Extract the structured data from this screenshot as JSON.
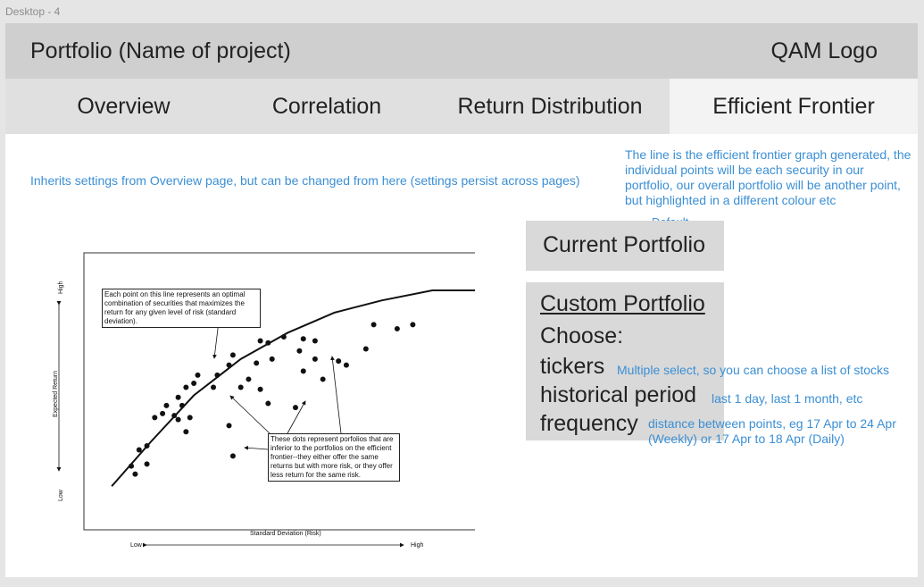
{
  "frame_label": "Desktop - 4",
  "header": {
    "title": "Portfolio (Name of project)",
    "logo": "QAM Logo"
  },
  "tabs": [
    {
      "label": "Overview",
      "active": false
    },
    {
      "label": "Correlation",
      "active": false
    },
    {
      "label": "Return Distribution",
      "active": false
    },
    {
      "label": "Efficient Frontier",
      "active": true
    }
  ],
  "notes": {
    "inherit": "Inherits settings from Overview page, but can be changed from here (settings persist across pages)",
    "frontier": "The line is the efficient frontier graph generated, the individual points will be each security in our portfolio, our overall portfolio will be another point, but highlighted in a different colour etc",
    "default": "Default"
  },
  "current_portfolio": {
    "title": "Current Portfolio"
  },
  "custom_portfolio": {
    "title": "Custom Portfolio",
    "choose": "Choose:",
    "options": [
      {
        "label": "tickers",
        "note": "Multiple select, so you can choose a list of stocks"
      },
      {
        "label": "historical period",
        "note": "last 1 day, last 1 month, etc"
      },
      {
        "label": "frequency",
        "note": "distance between points, eg 17 Apr to 24 Apr (Weekly) or 17 Apr to 18 Apr (Daily)"
      }
    ]
  },
  "chart_data": {
    "type": "scatter",
    "xlabel": "Standard Deviation (Risk)",
    "ylabel": "Expected Return",
    "x_low": "Low",
    "x_high": "High",
    "y_low": "Low",
    "y_high": "High",
    "xlim": [
      0,
      100
    ],
    "ylim": [
      0,
      100
    ],
    "frontier": [
      {
        "x": 3,
        "y": 3
      },
      {
        "x": 13,
        "y": 25
      },
      {
        "x": 24,
        "y": 48
      },
      {
        "x": 36,
        "y": 66
      },
      {
        "x": 48,
        "y": 79
      },
      {
        "x": 60,
        "y": 89
      },
      {
        "x": 72,
        "y": 95
      },
      {
        "x": 85,
        "y": 100
      },
      {
        "x": 100,
        "y": 100
      }
    ],
    "points": [
      {
        "x": 41,
        "y": 75
      },
      {
        "x": 43,
        "y": 74
      },
      {
        "x": 47,
        "y": 77
      },
      {
        "x": 52,
        "y": 76
      },
      {
        "x": 55,
        "y": 75
      },
      {
        "x": 51,
        "y": 70
      },
      {
        "x": 44,
        "y": 66
      },
      {
        "x": 40,
        "y": 64
      },
      {
        "x": 34,
        "y": 68
      },
      {
        "x": 33,
        "y": 63
      },
      {
        "x": 38,
        "y": 56
      },
      {
        "x": 30,
        "y": 58
      },
      {
        "x": 29,
        "y": 52
      },
      {
        "x": 25,
        "y": 58
      },
      {
        "x": 24,
        "y": 54
      },
      {
        "x": 36,
        "y": 52
      },
      {
        "x": 41,
        "y": 51
      },
      {
        "x": 22,
        "y": 52
      },
      {
        "x": 20,
        "y": 47
      },
      {
        "x": 21,
        "y": 43
      },
      {
        "x": 17,
        "y": 43
      },
      {
        "x": 19,
        "y": 38
      },
      {
        "x": 23,
        "y": 37
      },
      {
        "x": 22,
        "y": 30
      },
      {
        "x": 14,
        "y": 37
      },
      {
        "x": 16,
        "y": 39
      },
      {
        "x": 20,
        "y": 36
      },
      {
        "x": 12,
        "y": 23
      },
      {
        "x": 10,
        "y": 21
      },
      {
        "x": 12,
        "y": 14
      },
      {
        "x": 9,
        "y": 9
      },
      {
        "x": 8,
        "y": 13
      },
      {
        "x": 33,
        "y": 33
      },
      {
        "x": 52,
        "y": 60
      },
      {
        "x": 55,
        "y": 66
      },
      {
        "x": 50,
        "y": 42
      },
      {
        "x": 61,
        "y": 65
      },
      {
        "x": 68,
        "y": 71
      },
      {
        "x": 70,
        "y": 83
      },
      {
        "x": 76,
        "y": 81
      },
      {
        "x": 80,
        "y": 83
      },
      {
        "x": 34,
        "y": 18
      },
      {
        "x": 43,
        "y": 44
      },
      {
        "x": 63,
        "y": 63
      },
      {
        "x": 57,
        "y": 56
      }
    ],
    "annotations": {
      "frontier": "Each point on this line represents an optimal combination of securities that maximizes the return for any given level of risk (standard deviation).",
      "dots": "These dots represent porfolios that are inferior to the portfolios on the efficient frontier--they either offer the same returns but with more risk, or they offer less return for the same risk."
    },
    "grid": false,
    "legend": "none"
  }
}
